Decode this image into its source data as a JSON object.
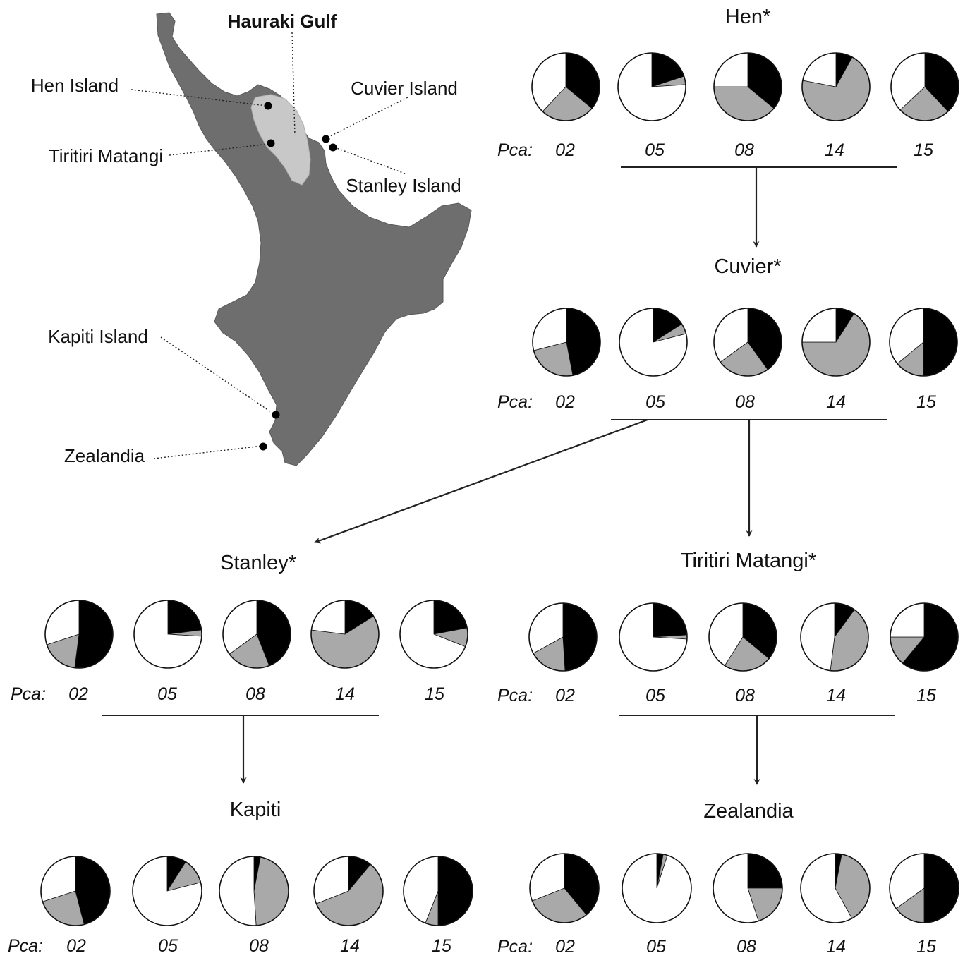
{
  "map": {
    "title": "Hauraki Gulf",
    "sites": [
      {
        "id": "hen",
        "label": "Hen Island"
      },
      {
        "id": "cuvier",
        "label": "Cuvier Island"
      },
      {
        "id": "tiritiri",
        "label": "Tiritiri Matangi"
      },
      {
        "id": "stanley",
        "label": "Stanley Island"
      },
      {
        "id": "kapiti",
        "label": "Kapiti Island"
      },
      {
        "id": "zealandia",
        "label": "Zealandia"
      }
    ],
    "colors": {
      "land": "#6e6e6e",
      "gulf": "#c8c8c8",
      "site": "#000000"
    }
  },
  "locus_prefix": "Pca:",
  "loci": [
    "02",
    "05",
    "08",
    "14",
    "15"
  ],
  "allele_colors": [
    "#000000",
    "#a9a9a9",
    "#ffffff",
    "#202020"
  ],
  "populations": [
    {
      "id": "hen",
      "title": "Hen*",
      "pies": [
        [
          0.36,
          0.26,
          0.38
        ],
        [
          0.2,
          0.04,
          0.76
        ],
        [
          0.36,
          0.39,
          0.25
        ],
        [
          0.08,
          0.7,
          0.22
        ],
        [
          0.38,
          0.25,
          0.37
        ]
      ]
    },
    {
      "id": "cuvier",
      "title": "Cuvier*",
      "pies": [
        [
          0.47,
          0.24,
          0.29
        ],
        [
          0.16,
          0.05,
          0.79
        ],
        [
          0.4,
          0.25,
          0.35
        ],
        [
          0.09,
          0.66,
          0.25
        ],
        [
          0.5,
          0.14,
          0.36
        ]
      ]
    },
    {
      "id": "stanley",
      "title": "Stanley*",
      "pies": [
        [
          0.52,
          0.18,
          0.3
        ],
        [
          0.23,
          0.03,
          0.74
        ],
        [
          0.44,
          0.21,
          0.35
        ],
        [
          0.16,
          0.61,
          0.23
        ],
        [
          0.22,
          0.09,
          0.69
        ]
      ]
    },
    {
      "id": "tiritiri",
      "title": "Tiritiri Matangi*",
      "pies": [
        [
          0.49,
          0.18,
          0.33
        ],
        [
          0.24,
          0.02,
          0.74
        ],
        [
          0.36,
          0.23,
          0.41
        ],
        [
          0.1,
          0.42,
          0.48
        ],
        [
          0.61,
          0.14,
          0.25
        ]
      ]
    },
    {
      "id": "kapiti",
      "title": "Kapiti",
      "pies": [
        [
          0.46,
          0.24,
          0.3
        ],
        [
          0.09,
          0.12,
          0.79
        ],
        [
          0.03,
          0.46,
          0.51
        ],
        [
          0.11,
          0.58,
          0.31
        ],
        [
          0.5,
          0.06,
          0.44
        ]
      ]
    },
    {
      "id": "zealandia",
      "title": "Zealandia",
      "pies": [
        [
          0.39,
          0.3,
          0.31
        ],
        [
          0.03,
          0.02,
          0.95
        ],
        [
          0.25,
          0.2,
          0.55
        ],
        [
          0.03,
          0.39,
          0.58
        ],
        [
          0.5,
          0.15,
          0.35
        ]
      ]
    }
  ]
}
